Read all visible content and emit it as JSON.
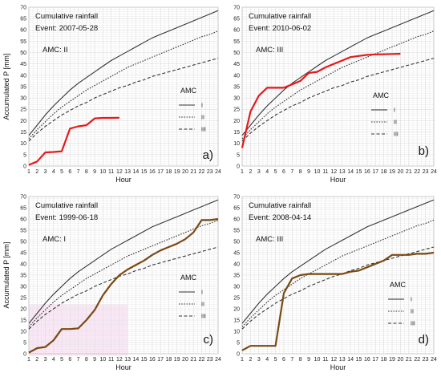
{
  "colors": {
    "observed_top": "#e8191a",
    "observed_bottom": "#7a4a12",
    "curves": "#333333",
    "grid": "#dcdcdc",
    "highlight": "#f7d6f0"
  },
  "chart_data": [
    {
      "type": "line",
      "panel": "a)",
      "title": "Cumulative rainfall",
      "event": "Event: 2007-05-28",
      "amc": "AMC: II",
      "xlabel": "Hour",
      "ylabel": "Accumulated P [mm]",
      "x_ticks": [
        1,
        2,
        3,
        4,
        5,
        6,
        7,
        8,
        9,
        10,
        11,
        12,
        13,
        14,
        15,
        16,
        17,
        18,
        19,
        20,
        21,
        22,
        23,
        24
      ],
      "y_ticks": [
        0,
        5,
        10,
        15,
        20,
        25,
        30,
        35,
        40,
        45,
        50,
        55,
        60,
        65,
        70
      ],
      "xlim": [
        1,
        24
      ],
      "ylim": [
        0,
        70
      ],
      "grid": true,
      "legend": {
        "title": "AMC",
        "items": [
          "I",
          "II",
          "III"
        ],
        "position": "right"
      },
      "observed": {
        "color": "#e8191a",
        "x": [
          1,
          2,
          3,
          4,
          5,
          6,
          7,
          8,
          9,
          10,
          11,
          12
        ],
        "y": [
          0.5,
          2,
          6,
          6.2,
          6.5,
          16.5,
          17.5,
          18,
          21,
          21.2,
          21.2,
          21.3
        ]
      }
    },
    {
      "type": "line",
      "panel": "b)",
      "title": "Cumulative rainfall",
      "event": "Event: 2010-06-02",
      "amc": "AMC: III",
      "xlabel": "Hour",
      "ylabel": "",
      "x_ticks": [
        1,
        2,
        3,
        4,
        5,
        6,
        7,
        8,
        9,
        10,
        11,
        12,
        13,
        14,
        15,
        16,
        17,
        18,
        19,
        20,
        21,
        22,
        23,
        24
      ],
      "y_ticks": [
        0,
        5,
        10,
        15,
        20,
        25,
        30,
        35,
        40,
        45,
        50,
        55,
        60,
        65,
        70
      ],
      "xlim": [
        1,
        24
      ],
      "ylim": [
        0,
        70
      ],
      "grid": true,
      "legend": {
        "title": "AMC",
        "items": [
          "I",
          "II",
          "III"
        ],
        "position": "right"
      },
      "observed": {
        "color": "#e8191a",
        "x": [
          1,
          2,
          3,
          4,
          5,
          6,
          7,
          8,
          9,
          10,
          11,
          12,
          13,
          14,
          15,
          16,
          17,
          18,
          19,
          20
        ],
        "y": [
          8,
          24,
          31,
          34.5,
          34.5,
          34.5,
          36,
          37.5,
          41,
          41.5,
          43.5,
          45,
          46.5,
          48,
          48.5,
          49,
          49.2,
          49.3,
          49.4,
          49.5
        ]
      }
    },
    {
      "type": "line",
      "panel": "c)",
      "title": "Cumulative rainfall",
      "event": "Event: 1999-06-18",
      "amc": "AMC: I",
      "xlabel": "Hour",
      "ylabel": "Accumulated P [mm]",
      "x_ticks": [
        1,
        2,
        3,
        4,
        5,
        6,
        7,
        8,
        9,
        10,
        11,
        12,
        13,
        14,
        15,
        16,
        17,
        18,
        19,
        20,
        21,
        22,
        23,
        24
      ],
      "y_ticks": [
        0,
        5,
        10,
        15,
        20,
        25,
        30,
        35,
        40,
        45,
        50,
        55,
        60,
        65,
        70
      ],
      "xlim": [
        1,
        24
      ],
      "ylim": [
        0,
        70
      ],
      "grid": true,
      "legend": {
        "title": "AMC",
        "items": [
          "I",
          "II",
          "III"
        ],
        "position": "right"
      },
      "observed": {
        "color": "#7a4a12",
        "x": [
          1,
          2,
          3,
          4,
          5,
          6,
          7,
          8,
          9,
          10,
          11,
          12,
          13,
          14,
          15,
          16,
          17,
          18,
          19,
          20,
          21,
          22,
          23,
          24
        ],
        "y": [
          0.5,
          2.5,
          3,
          6,
          11,
          11,
          11.3,
          15,
          19.5,
          26,
          31,
          35,
          37.5,
          39.5,
          41.5,
          44,
          46,
          47.5,
          49,
          51,
          54,
          59.5,
          59.5,
          60
        ]
      }
    },
    {
      "type": "line",
      "panel": "d)",
      "title": "Cumulative rainfall",
      "event": "Event: 2008-04-14",
      "amc": "AMC: III",
      "xlabel": "Hour",
      "ylabel": "",
      "x_ticks": [
        1,
        2,
        3,
        4,
        5,
        6,
        7,
        8,
        9,
        10,
        11,
        12,
        13,
        14,
        15,
        16,
        17,
        18,
        19,
        20,
        21,
        22,
        23,
        24
      ],
      "y_ticks": [
        0,
        5,
        10,
        15,
        20,
        25,
        30,
        35,
        40,
        45,
        50,
        55,
        60,
        65,
        70
      ],
      "xlim": [
        1,
        24
      ],
      "ylim": [
        0,
        70
      ],
      "grid": true,
      "legend": {
        "title": "AMC",
        "items": [
          "I",
          "II",
          "III"
        ],
        "position": "right"
      },
      "observed": {
        "color": "#7a4a12",
        "x": [
          1,
          2,
          3,
          4,
          5,
          6,
          7,
          8,
          9,
          10,
          11,
          12,
          13,
          14,
          15,
          16,
          17,
          18,
          19,
          20,
          21,
          22,
          23,
          24
        ],
        "y": [
          1.5,
          3.5,
          3.5,
          3.5,
          3.5,
          27,
          33.5,
          35,
          35.5,
          35.5,
          35.5,
          35.5,
          35.5,
          36.5,
          37,
          38.5,
          40,
          41.5,
          44,
          44,
          44,
          44.5,
          44.5,
          45
        ]
      }
    }
  ],
  "design_curves": {
    "x": [
      1,
      2,
      3,
      4,
      5,
      6,
      7,
      8,
      9,
      10,
      11,
      12,
      13,
      14,
      15,
      16,
      17,
      18,
      19,
      20,
      21,
      22,
      23,
      24
    ],
    "I": [
      13.5,
      18,
      22.5,
      26.5,
      30,
      33.5,
      36.5,
      39,
      41.5,
      44,
      46.5,
      48.5,
      50.5,
      52.5,
      54.5,
      56.5,
      58,
      59.5,
      61,
      62.5,
      64,
      65.5,
      67,
      68.5
    ],
    "II": [
      12,
      16,
      19.5,
      23,
      26,
      28.5,
      31,
      33.5,
      35.5,
      37.5,
      39.5,
      41.5,
      43.5,
      45,
      46.5,
      48,
      49.5,
      51,
      52.5,
      54,
      55.5,
      57,
      58,
      59.5
    ],
    "III": [
      11,
      14.5,
      17.5,
      20,
      22.5,
      24.5,
      26.5,
      28,
      30,
      31.5,
      33,
      34.5,
      35.5,
      37,
      38,
      39.5,
      40.5,
      41.5,
      42.5,
      43.5,
      44.5,
      45.5,
      46.5,
      47.5
    ]
  }
}
